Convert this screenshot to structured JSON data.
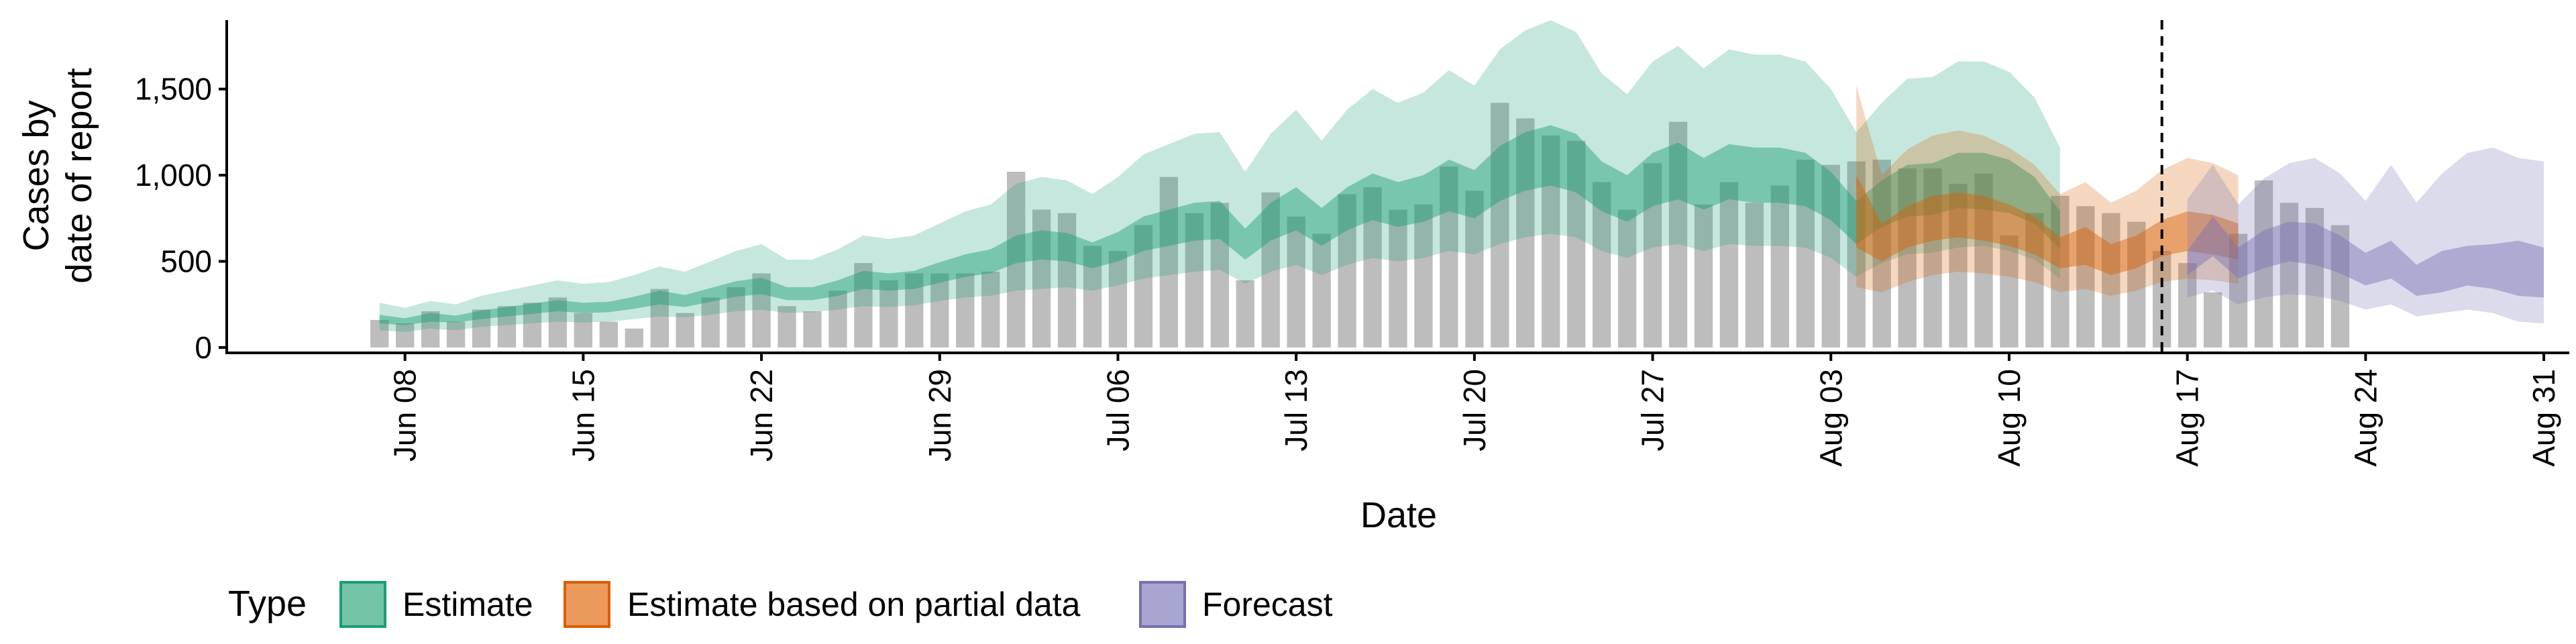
{
  "chart_data": {
    "type": "area",
    "xlabel": "Date",
    "ylabel_lines": [
      "Cases by",
      "date of report"
    ],
    "x_range": [
      "2020-06-01",
      "2020-09-01"
    ],
    "ylim": [
      0,
      1900
    ],
    "x_ticks": [
      {
        "date": "2020-06-08",
        "label": "Jun 08"
      },
      {
        "date": "2020-06-15",
        "label": "Jun 15"
      },
      {
        "date": "2020-06-22",
        "label": "Jun 22"
      },
      {
        "date": "2020-06-29",
        "label": "Jun 29"
      },
      {
        "date": "2020-07-06",
        "label": "Jul 06"
      },
      {
        "date": "2020-07-13",
        "label": "Jul 13"
      },
      {
        "date": "2020-07-20",
        "label": "Jul 20"
      },
      {
        "date": "2020-07-27",
        "label": "Jul 27"
      },
      {
        "date": "2020-08-03",
        "label": "Aug 03"
      },
      {
        "date": "2020-08-10",
        "label": "Aug 10"
      },
      {
        "date": "2020-08-17",
        "label": "Aug 17"
      },
      {
        "date": "2020-08-24",
        "label": "Aug 24"
      },
      {
        "date": "2020-08-31",
        "label": "Aug 31"
      }
    ],
    "y_ticks": [
      {
        "value": 0,
        "label": "0"
      },
      {
        "value": 500,
        "label": "500"
      },
      {
        "value": 1000,
        "label": "1,000"
      },
      {
        "value": 1500,
        "label": "1,500"
      }
    ],
    "vline_date": "2020-08-16",
    "legend": {
      "title": "Type",
      "position": "bottom",
      "items": [
        {
          "label": "Estimate",
          "fill": "#74c4a7",
          "stroke": "#1b9e77"
        },
        {
          "label": "Estimate based on partial data",
          "fill": "#ec9a5c",
          "stroke": "#d95f02"
        },
        {
          "label": "Forecast",
          "fill": "#a8a6d1",
          "stroke": "#7570b3"
        }
      ]
    },
    "colors": {
      "bars": "#bdbdbd",
      "estimate": "#1b9e77",
      "partial": "#d95f02",
      "forecast": "#7570b3"
    },
    "bars": {
      "start_date": "2020-06-07",
      "values": [
        160,
        140,
        210,
        150,
        220,
        240,
        260,
        290,
        200,
        150,
        110,
        340,
        200,
        290,
        350,
        430,
        240,
        210,
        330,
        490,
        390,
        430,
        430,
        430,
        440,
        1020,
        800,
        780,
        590,
        560,
        710,
        990,
        780,
        840,
        390,
        900,
        760,
        660,
        890,
        930,
        800,
        830,
        1050,
        910,
        1420,
        1330,
        1230,
        1200,
        960,
        800,
        1070,
        1310,
        830,
        960,
        840,
        940,
        1090,
        1060,
        1080,
        1090,
        1040,
        1040,
        950,
        1010,
        650,
        780,
        880,
        820,
        780,
        730,
        560,
        490,
        320,
        660,
        970,
        840,
        810,
        710
      ]
    },
    "series": [
      {
        "name": "Estimate",
        "start_date": "2020-06-07",
        "lower90": [
          100,
          90,
          110,
          100,
          120,
          130,
          140,
          150,
          145,
          150,
          165,
          180,
          175,
          190,
          210,
          220,
          200,
          205,
          220,
          240,
          235,
          245,
          270,
          290,
          300,
          330,
          340,
          350,
          330,
          360,
          400,
          420,
          440,
          450,
          370,
          440,
          480,
          420,
          480,
          520,
          500,
          520,
          560,
          540,
          600,
          640,
          660,
          640,
          560,
          520,
          580,
          600,
          560,
          600,
          590,
          590,
          580,
          520,
          410,
          490,
          540,
          550,
          580,
          590,
          560,
          510,
          400
        ],
        "lower50": [
          140,
          130,
          150,
          145,
          165,
          180,
          195,
          210,
          200,
          205,
          225,
          250,
          235,
          265,
          295,
          310,
          275,
          275,
          300,
          340,
          330,
          340,
          375,
          410,
          430,
          490,
          510,
          500,
          460,
          500,
          560,
          590,
          620,
          630,
          510,
          620,
          680,
          590,
          680,
          740,
          700,
          730,
          790,
          750,
          850,
          910,
          940,
          900,
          790,
          730,
          820,
          860,
          800,
          860,
          840,
          840,
          820,
          740,
          600,
          700,
          760,
          770,
          810,
          800,
          780,
          720,
          570
        ],
        "upper50": [
          190,
          170,
          200,
          185,
          215,
          235,
          255,
          275,
          260,
          265,
          295,
          330,
          305,
          345,
          385,
          405,
          350,
          350,
          390,
          445,
          430,
          445,
          495,
          540,
          570,
          650,
          680,
          665,
          610,
          670,
          760,
          800,
          840,
          850,
          690,
          840,
          930,
          810,
          930,
          1010,
          960,
          1000,
          1090,
          1030,
          1170,
          1250,
          1290,
          1240,
          1080,
          1000,
          1130,
          1190,
          1100,
          1180,
          1160,
          1160,
          1130,
          1020,
          850,
          970,
          1060,
          1070,
          1130,
          1130,
          1090,
          990,
          790
        ],
        "upper90": [
          260,
          230,
          270,
          250,
          300,
          330,
          360,
          390,
          370,
          380,
          420,
          470,
          440,
          500,
          560,
          600,
          510,
          510,
          570,
          650,
          630,
          650,
          720,
          790,
          830,
          950,
          990,
          970,
          890,
          990,
          1120,
          1180,
          1240,
          1250,
          1020,
          1240,
          1380,
          1200,
          1380,
          1500,
          1420,
          1480,
          1610,
          1520,
          1730,
          1840,
          1900,
          1830,
          1590,
          1470,
          1660,
          1750,
          1620,
          1730,
          1700,
          1700,
          1660,
          1500,
          1250,
          1420,
          1560,
          1570,
          1660,
          1660,
          1600,
          1450,
          1160
        ]
      },
      {
        "name": "Estimate based on partial data",
        "start_date": "2020-08-04",
        "lower90": [
          350,
          320,
          380,
          420,
          440,
          430,
          410,
          380,
          320,
          340,
          300,
          330,
          380,
          400,
          390,
          370
        ],
        "lower50": [
          580,
          500,
          580,
          620,
          640,
          620,
          590,
          540,
          460,
          480,
          420,
          460,
          530,
          560,
          540,
          510
        ],
        "upper50": [
          1000,
          720,
          820,
          880,
          900,
          880,
          830,
          760,
          640,
          700,
          600,
          650,
          740,
          790,
          770,
          720
        ],
        "upper90": [
          1520,
          1000,
          1150,
          1230,
          1260,
          1230,
          1160,
          1060,
          890,
          960,
          840,
          910,
          1030,
          1100,
          1070,
          1000
        ]
      },
      {
        "name": "Forecast",
        "start_date": "2020-08-17",
        "lower90": [
          290,
          330,
          250,
          290,
          310,
          300,
          270,
          220,
          250,
          180,
          200,
          220,
          200,
          150,
          140
        ],
        "lower50": [
          420,
          530,
          400,
          460,
          500,
          480,
          430,
          360,
          400,
          300,
          320,
          360,
          340,
          300,
          290
        ],
        "upper50": [
          560,
          760,
          580,
          680,
          730,
          720,
          650,
          550,
          620,
          480,
          560,
          590,
          600,
          620,
          580
        ],
        "upper90": [
          860,
          1060,
          830,
          980,
          1070,
          1100,
          1010,
          850,
          1060,
          840,
          1010,
          1130,
          1160,
          1100,
          1080
        ]
      }
    ]
  }
}
